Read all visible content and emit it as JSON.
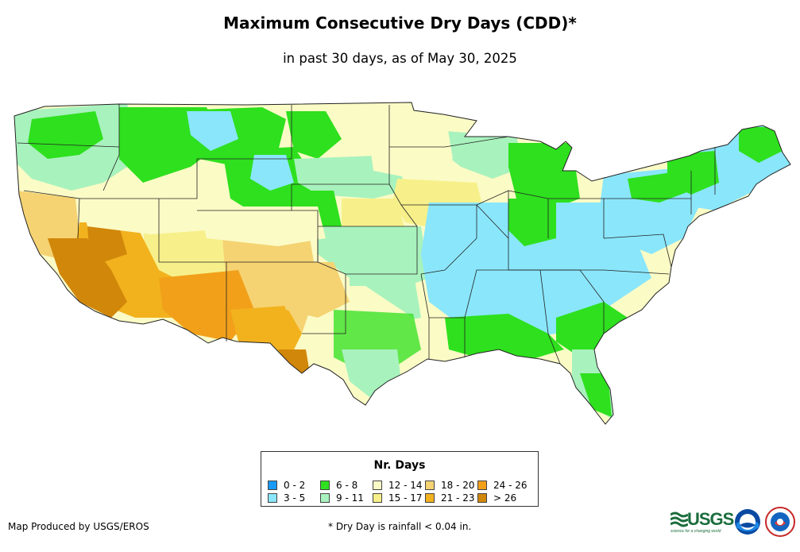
{
  "header": {
    "title": "Maximum Consecutive Dry Days (CDD)*",
    "subtitle": "in past 30 days, as of May 30, 2025"
  },
  "legend": {
    "title": "Nr. Days",
    "items": [
      {
        "label": "0 - 2",
        "color": "#1a9af7"
      },
      {
        "label": "3 - 5",
        "color": "#8ae6fb"
      },
      {
        "label": "6 - 8",
        "color": "#2ee01e"
      },
      {
        "label": "9 - 11",
        "color": "#a8f2bd"
      },
      {
        "label": "12 - 14",
        "color": "#fbfbc6"
      },
      {
        "label": "15 - 17",
        "color": "#f7f08a"
      },
      {
        "label": "18 - 20",
        "color": "#f5d372"
      },
      {
        "label": "21 - 23",
        "color": "#f2b21e"
      },
      {
        "label": "24 - 26",
        "color": "#f2a01a"
      },
      {
        "label": "> 26",
        "color": "#d1870a"
      }
    ]
  },
  "footer": {
    "producer": "Map Produced by USGS/EROS",
    "note": "* Dry Day is rainfall < 0.04 in."
  },
  "logos": {
    "usgs_text": "USGS",
    "usgs_tagline": "science for a changing world",
    "noaa_text": "noaa",
    "nws_text": "NATIONAL WEATHER SERVICE"
  }
}
